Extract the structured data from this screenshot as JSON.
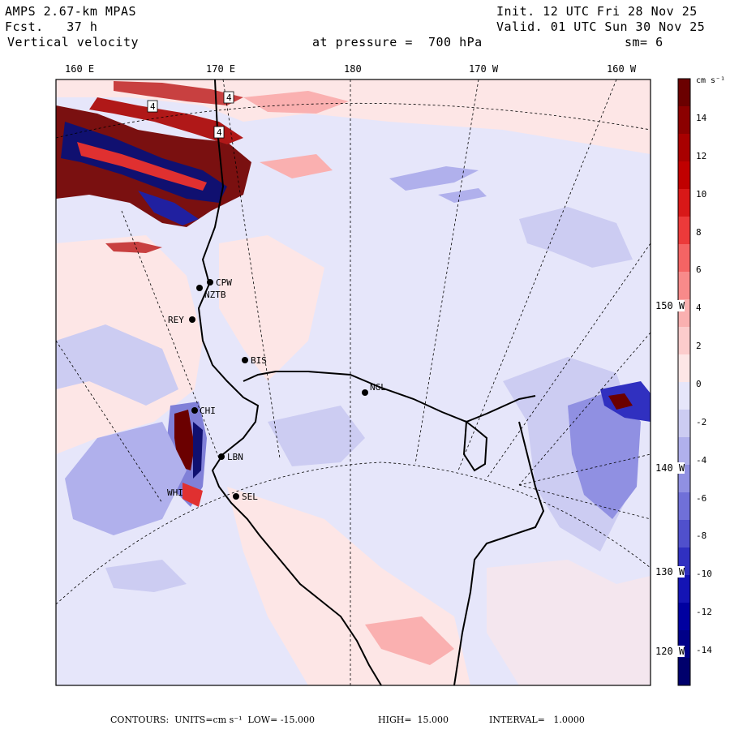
{
  "header": {
    "model": "AMPS 2.67-km MPAS",
    "forecast": "Fcst.   37 h",
    "field": "Vertical velocity",
    "init": "Init. 12 UTC Fri 28 Nov 25",
    "valid": "Valid. 01 UTC Sun 30 Nov 25",
    "level": "at pressure =  700 hPa",
    "smoothing": "sm= 6"
  },
  "map": {
    "lon_labels": [
      "160 E",
      "170 E",
      "180",
      "170 W",
      "160 W"
    ],
    "lat_labels": [
      "150 W",
      "140 W",
      "130 W",
      "120 W"
    ],
    "stations": [
      {
        "id": "CPW"
      },
      {
        "id": "NZTB"
      },
      {
        "id": "REY"
      },
      {
        "id": "BIS"
      },
      {
        "id": "NGL"
      },
      {
        "id": "CHI"
      },
      {
        "id": "LBN"
      },
      {
        "id": "WHI"
      },
      {
        "id": "SEL"
      }
    ],
    "contour_box_labels": [
      "4",
      "4",
      "4"
    ]
  },
  "colorbar": {
    "units": "cm s⁻¹",
    "ticks": [
      "14",
      "12",
      "10",
      "8",
      "6",
      "4",
      "2",
      "0",
      "-2",
      "-4",
      "-6",
      "-8",
      "-10",
      "-12",
      "-14"
    ],
    "colors": [
      "#6b0000",
      "#8b0000",
      "#a80000",
      "#c00000",
      "#d81818",
      "#ec3a3a",
      "#f46464",
      "#f88a8a",
      "#fab0b0",
      "#fccccc",
      "#fde6e6",
      "#e6e6fa",
      "#ccccf2",
      "#b0b0ec",
      "#9090e2",
      "#7070d8",
      "#5050cc",
      "#3030c0",
      "#1414b4",
      "#0000a0",
      "#000088",
      "#00006c"
    ]
  },
  "footer": {
    "contours": "CONTOURS:  UNITS=cm s⁻¹  LOW= -15.000",
    "high": "HIGH=  15.000",
    "interval": "INTERVAL=   1.0000"
  }
}
